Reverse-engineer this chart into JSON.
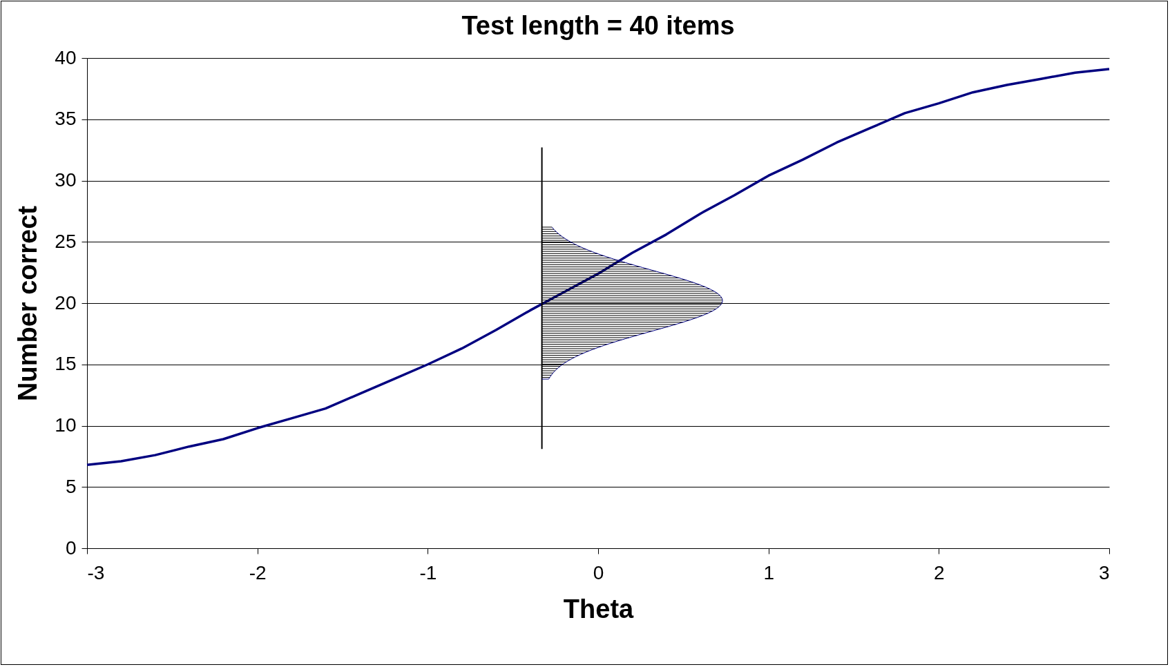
{
  "chart_data": {
    "type": "line",
    "title": "Test length = 40 items",
    "xlabel": "Theta",
    "ylabel": "Number correct",
    "x": [
      -3,
      -2.8,
      -2.6,
      -2.4,
      -2.2,
      -2,
      -1.8,
      -1.6,
      -1.4,
      -1.2,
      -1,
      -0.8,
      -0.6,
      -0.4,
      -0.2,
      0,
      0.2,
      0.4,
      0.6,
      0.8,
      1,
      1.2,
      1.4,
      1.6,
      1.8,
      2,
      2.2,
      2.4,
      2.6,
      2.8,
      3
    ],
    "series": [
      {
        "color": "#000080",
        "values": [
          6.8,
          7.1,
          7.6,
          8.3,
          8.9,
          9.8,
          10.6,
          11.4,
          12.6,
          13.8,
          15,
          16.3,
          17.8,
          19.4,
          20.9,
          22.4,
          24.1,
          25.6,
          27.3,
          28.8,
          30.4,
          31.7,
          33.1,
          34.3,
          35.5,
          36.3,
          37.2,
          37.8,
          38.3,
          38.8,
          39.1
        ]
      }
    ],
    "xlim": [
      -3,
      3
    ],
    "xticks": [
      -3,
      -2,
      -1,
      0,
      1,
      2,
      3
    ],
    "ylim": [
      0,
      40
    ],
    "yticks": [
      0,
      5,
      10,
      15,
      20,
      25,
      30,
      35,
      40
    ],
    "ref_lines": [
      {
        "axis": "x",
        "value": -0.33,
        "color": "#000000"
      }
    ],
    "grid": "y",
    "legend": false,
    "marker": "none",
    "line_style": "solid"
  }
}
